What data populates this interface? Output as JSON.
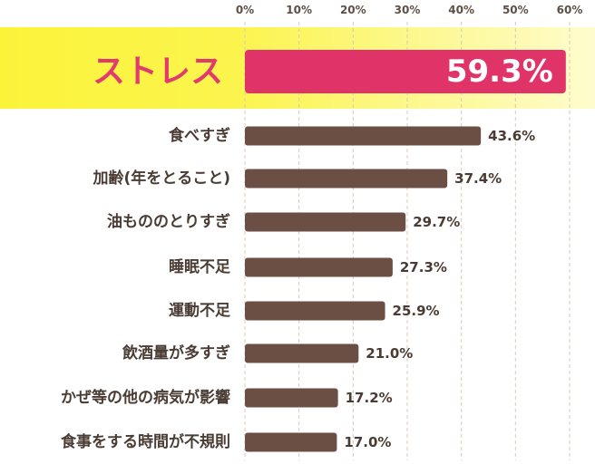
{
  "colors": {
    "bar": "#6b4e44",
    "highlight_bar": "#e03468",
    "highlight_band": "#fbf33a",
    "highlight_text": "#e23a6e",
    "grid": "#d9c9bd",
    "text": "#4a3c34"
  },
  "chart_data": {
    "type": "bar",
    "orientation": "horizontal",
    "categories": [
      "ストレス",
      "食べすぎ",
      "加齢(年をとること)",
      "油もののとりすぎ",
      "睡眠不足",
      "運動不足",
      "飲酒量が多すぎ",
      "かぜ等の他の病気が影響",
      "食事をする時間が不規則"
    ],
    "values": [
      59.3,
      43.6,
      37.4,
      29.7,
      27.3,
      25.9,
      21.0,
      17.2,
      17.0
    ],
    "value_labels": [
      "59.3%",
      "43.6%",
      "37.4%",
      "29.7%",
      "27.3%",
      "25.9%",
      "21.0%",
      "17.2%",
      "17.0%"
    ],
    "highlight_index": 0,
    "x_ticks": [
      "0%",
      "10%",
      "20%",
      "30%",
      "40%",
      "50%",
      "60%"
    ],
    "xlim": [
      0,
      60
    ],
    "grid": true,
    "grid_style": "dashed vertical"
  }
}
